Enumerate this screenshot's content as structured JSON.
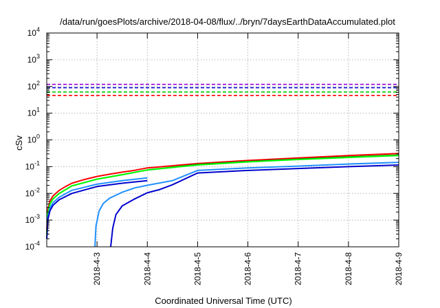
{
  "chart_data": {
    "type": "line",
    "title": "/data/run/goesPlots/archive/2018-04-08/flux/../bryn/7daysEarthDataAccumulated.plot",
    "xlabel": "Coordinated Universal Time (UTC)",
    "ylabel": "cSv",
    "x_scale": "time",
    "y_scale": "log",
    "xlim": [
      "2018-04-02T00:00",
      "2018-04-09T00:00"
    ],
    "ylim": [
      0.0001,
      10000
    ],
    "grid": true,
    "x_ticks": [
      "2018-4-3",
      "2018-4-4",
      "2018-4-5",
      "2018-4-6",
      "2018-4-7",
      "2018-4-8",
      "2018-4-9"
    ],
    "y_ticks": [
      {
        "value": 0.0001,
        "base": "10",
        "exp": "-4"
      },
      {
        "value": 0.001,
        "base": "10",
        "exp": "-3"
      },
      {
        "value": 0.01,
        "base": "10",
        "exp": "-2"
      },
      {
        "value": 0.1,
        "base": "10",
        "exp": "-1"
      },
      {
        "value": 1,
        "base": "10",
        "exp": "0"
      },
      {
        "value": 10,
        "base": "10",
        "exp": "1"
      },
      {
        "value": 100,
        "base": "10",
        "exp": "2"
      },
      {
        "value": 1000,
        "base": "10",
        "exp": "3"
      },
      {
        "value": 10000,
        "base": "10",
        "exp": "4"
      }
    ],
    "thresholds": [
      {
        "value": 120,
        "color": "#9400d3"
      },
      {
        "value": 90,
        "color": "#0000cd"
      },
      {
        "value": 62,
        "color": "#00cc00"
      },
      {
        "value": 46,
        "color": "#ff0000"
      }
    ],
    "series": [
      {
        "color": "#ff0000",
        "points": [
          [
            "2018-04-02T00:00",
            0.0004
          ],
          [
            "2018-04-02T00:30",
            0.0025
          ],
          [
            "2018-04-02T01:30",
            0.0052
          ],
          [
            "2018-04-02T03:00",
            0.008
          ],
          [
            "2018-04-02T06:00",
            0.013
          ],
          [
            "2018-04-02T09:00",
            0.018
          ],
          [
            "2018-04-02T12:00",
            0.024
          ],
          [
            "2018-04-02T18:00",
            0.033
          ],
          [
            "2018-04-03T00:00",
            0.043
          ],
          [
            "2018-04-03T06:00",
            0.052
          ],
          [
            "2018-04-03T12:00",
            0.062
          ],
          [
            "2018-04-03T18:00",
            0.073
          ],
          [
            "2018-04-04T00:00",
            0.09
          ],
          [
            "2018-04-05T00:00",
            0.13
          ],
          [
            "2018-04-06T00:00",
            0.17
          ],
          [
            "2018-04-07T00:00",
            0.21
          ],
          [
            "2018-04-08T00:00",
            0.26
          ],
          [
            "2018-04-09T00:00",
            0.31
          ]
        ]
      },
      {
        "color": "#008000",
        "points": [
          [
            "2018-04-02T00:00",
            0.0003
          ],
          [
            "2018-04-02T00:30",
            0.0018
          ],
          [
            "2018-04-02T01:30",
            0.004
          ],
          [
            "2018-04-02T03:00",
            0.0062
          ],
          [
            "2018-04-02T06:00",
            0.01
          ],
          [
            "2018-04-02T12:00",
            0.019
          ],
          [
            "2018-04-03T00:00",
            0.034
          ],
          [
            "2018-04-03T12:00",
            0.05
          ],
          [
            "2018-04-04T00:00",
            0.075
          ],
          [
            "2018-04-05T00:00",
            0.12
          ],
          [
            "2018-04-06T00:00",
            0.155
          ],
          [
            "2018-04-07T00:00",
            0.19
          ],
          [
            "2018-04-08T00:00",
            0.23
          ],
          [
            "2018-04-09T00:00",
            0.27
          ]
        ]
      },
      {
        "color": "#00ff00",
        "points": [
          [
            "2018-04-02T00:00",
            0.0003
          ],
          [
            "2018-04-02T00:30",
            0.0018
          ],
          [
            "2018-04-02T01:30",
            0.004
          ],
          [
            "2018-04-02T03:00",
            0.0062
          ],
          [
            "2018-04-02T06:00",
            0.01
          ],
          [
            "2018-04-02T12:00",
            0.019
          ],
          [
            "2018-04-03T00:00",
            0.034
          ],
          [
            "2018-04-03T12:00",
            0.05
          ],
          [
            "2018-04-04T00:00",
            0.075
          ],
          [
            "2018-04-05T00:00",
            0.115
          ],
          [
            "2018-04-06T00:00",
            0.15
          ],
          [
            "2018-04-07T00:00",
            0.185
          ],
          [
            "2018-04-08T00:00",
            0.22
          ],
          [
            "2018-04-09T00:00",
            0.26
          ]
        ]
      },
      {
        "color": "#1e90ff",
        "points": [
          [
            "2018-04-02T00:00",
            0.0002
          ],
          [
            "2018-04-02T00:30",
            0.0012
          ],
          [
            "2018-04-02T01:30",
            0.0028
          ],
          [
            "2018-04-02T03:00",
            0.0045
          ],
          [
            "2018-04-02T06:00",
            0.0072
          ],
          [
            "2018-04-02T12:00",
            0.013
          ],
          [
            "2018-04-03T00:00",
            0.022
          ],
          [
            "2018-04-03T12:00",
            0.03
          ],
          [
            "2018-04-04T00:00",
            0.038
          ]
        ]
      },
      {
        "color": "#0000cd",
        "points": [
          [
            "2018-04-02T00:00",
            0.0002
          ],
          [
            "2018-04-02T00:30",
            0.001
          ],
          [
            "2018-04-02T01:30",
            0.0022
          ],
          [
            "2018-04-02T03:00",
            0.0036
          ],
          [
            "2018-04-02T06:00",
            0.0058
          ],
          [
            "2018-04-02T12:00",
            0.01
          ],
          [
            "2018-04-03T00:00",
            0.018
          ],
          [
            "2018-04-03T12:00",
            0.024
          ],
          [
            "2018-04-04T00:00",
            0.03
          ]
        ]
      },
      {
        "color": "#1e90ff",
        "points": [
          [
            "2018-04-02T23:00",
            0.0001
          ],
          [
            "2018-04-02T23:30",
            0.0006
          ],
          [
            "2018-04-03T01:00",
            0.0022
          ],
          [
            "2018-04-03T03:00",
            0.0042
          ],
          [
            "2018-04-03T06:00",
            0.0066
          ],
          [
            "2018-04-03T12:00",
            0.011
          ],
          [
            "2018-04-03T18:00",
            0.016
          ],
          [
            "2018-04-04T00:00",
            0.02
          ],
          [
            "2018-04-04T12:00",
            0.03
          ],
          [
            "2018-04-05T00:00",
            0.072
          ],
          [
            "2018-04-06T00:00",
            0.09
          ],
          [
            "2018-04-07T00:00",
            0.105
          ],
          [
            "2018-04-08T00:00",
            0.125
          ],
          [
            "2018-04-09T00:00",
            0.145
          ]
        ]
      },
      {
        "color": "#0000cd",
        "points": [
          [
            "2018-04-03T06:30",
            0.0001
          ],
          [
            "2018-04-03T07:30",
            0.0005
          ],
          [
            "2018-04-03T09:00",
            0.0016
          ],
          [
            "2018-04-03T12:00",
            0.0034
          ],
          [
            "2018-04-03T18:00",
            0.0062
          ],
          [
            "2018-04-04T00:00",
            0.0105
          ],
          [
            "2018-04-04T06:00",
            0.014
          ],
          [
            "2018-04-04T12:00",
            0.021
          ],
          [
            "2018-04-05T00:00",
            0.058
          ],
          [
            "2018-04-06T00:00",
            0.072
          ],
          [
            "2018-04-07T00:00",
            0.085
          ],
          [
            "2018-04-08T00:00",
            0.1
          ],
          [
            "2018-04-09T00:00",
            0.115
          ]
        ]
      }
    ]
  }
}
